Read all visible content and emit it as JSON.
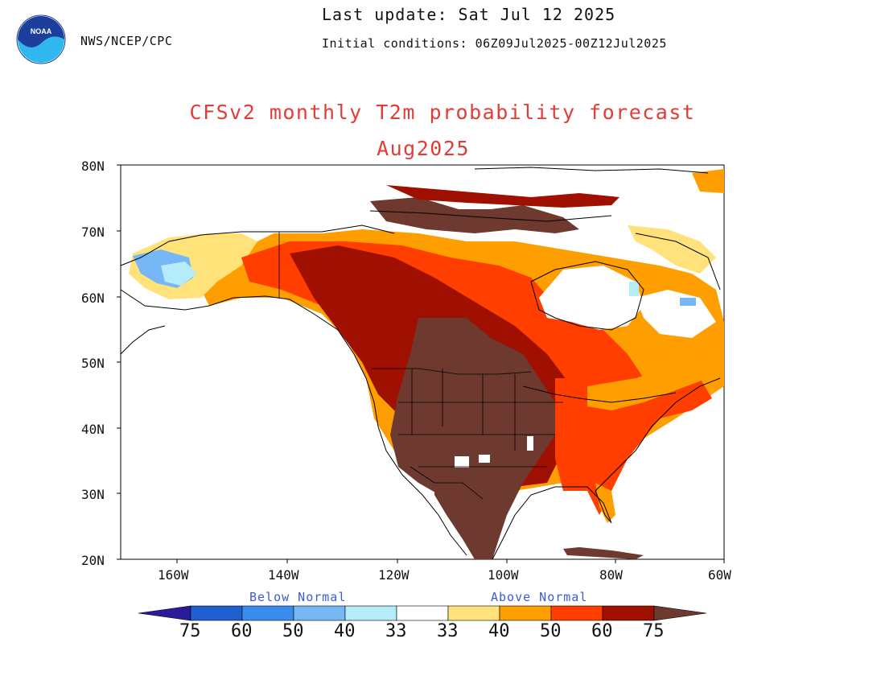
{
  "header": {
    "agency": "NWS/NCEP/CPC",
    "last_update": "Last update: Sat Jul 12 2025",
    "initial_conditions": "Initial conditions: 06Z09Jul2025-00Z12Jul2025",
    "title": "CFSv2 monthly T2m probability forecast",
    "subtitle": "Aug2025",
    "logo_text": "NOAA"
  },
  "axes": {
    "lat_labels": [
      "80N",
      "70N",
      "60N",
      "50N",
      "40N",
      "30N",
      "20N"
    ],
    "lon_labels": [
      "160W",
      "140W",
      "120W",
      "100W",
      "80W",
      "60W"
    ]
  },
  "legend": {
    "below_label": "Below Normal",
    "above_label": "Above Normal",
    "tick_labels": [
      "75",
      "60",
      "50",
      "40",
      "33",
      "33",
      "40",
      "50",
      "60",
      "75"
    ],
    "colors": [
      "#2a1a9c",
      "#1f5fcf",
      "#3a8cf0",
      "#78b7f5",
      "#b4ecfa",
      "#ffffff",
      "#ffe27a",
      "#ff9e00",
      "#ff3e00",
      "#a01000",
      "#6e3a30"
    ]
  },
  "map_colors": {
    "land_outline": "#000000",
    "near_normal": "#ffffff",
    "above_40": "#ffe27a",
    "above_50": "#ff9e00",
    "above_60": "#ff3e00",
    "above_75": "#a01000",
    "above_max": "#6e3a30",
    "below_33": "#b4ecfa",
    "below_40": "#78b7f5",
    "below_50": "#3a8cf0"
  }
}
